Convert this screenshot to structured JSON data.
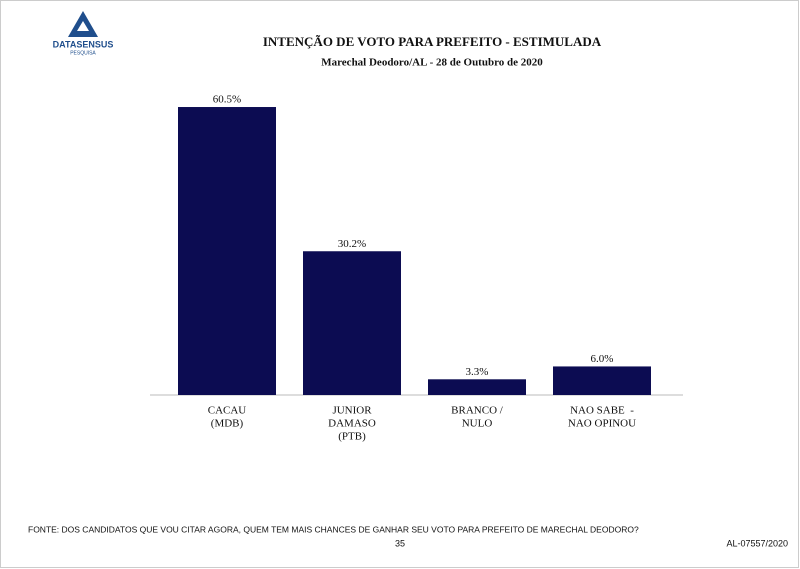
{
  "logo": {
    "name": "DATASENSUS",
    "tagline": "PESQUISA"
  },
  "chart_data": {
    "type": "bar",
    "title": "INTENÇÃO DE VOTO PARA PREFEITO - ESTIMULADA",
    "subtitle": "Marechal Deodoro/AL - 28 de Outubro de 2020",
    "categories": [
      [
        "CACAU",
        "(MDB)"
      ],
      [
        "JUNIOR",
        "DAMASO",
        "(PTB)"
      ],
      [
        "BRANCO /",
        "NULO"
      ],
      [
        "NAO SABE  -",
        "NAO OPINOU"
      ]
    ],
    "values": [
      60.5,
      30.2,
      3.3,
      6.0
    ],
    "value_labels": [
      "60.5%",
      "30.2%",
      "3.3%",
      "6.0%"
    ],
    "color": "#0c0c52"
  },
  "footer": {
    "source": "FONTE: DOS CANDIDATOS QUE VOU CITAR AGORA, QUEM TEM MAIS CHANCES DE GANHAR SEU VOTO PARA PREFEITO DE MARECHAL DEODORO?",
    "page": 35,
    "code": "AL-07557/2020"
  }
}
